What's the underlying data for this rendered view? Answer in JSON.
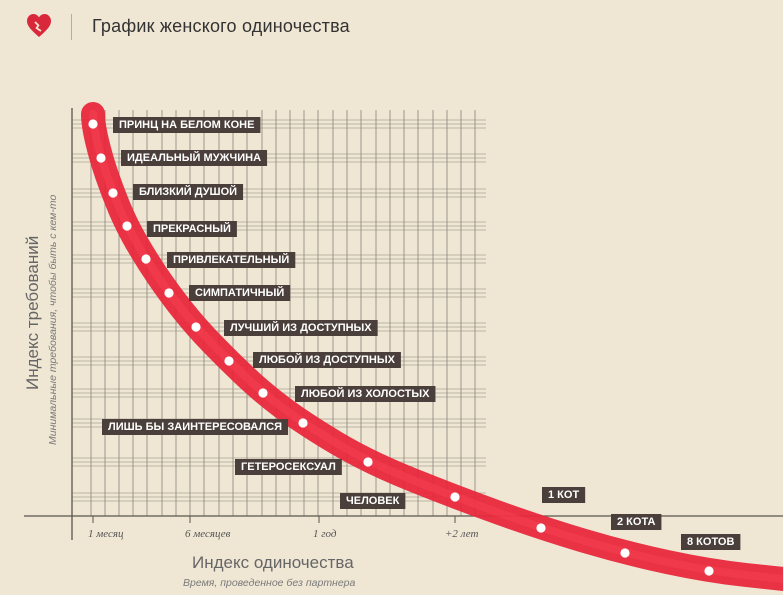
{
  "header": {
    "title": "График женского одиночества",
    "logo_icon": "heart-broken-icon"
  },
  "colors": {
    "background": "#efe6d4",
    "curve": "#e8283c",
    "label_bg": "#4a3f3a",
    "grid": "#8a8378"
  },
  "chart_data": {
    "type": "line",
    "xlabel": "Индекс одиночества",
    "xlabel_sub": "Время, проведенное без партнера",
    "ylabel": "Индекс требований",
    "ylabel_sub": "Минимальные требования, чтобы быть с кем-то",
    "x_ticks": [
      "1 месяц",
      "6 месяцев",
      "1 год",
      "+2 лет"
    ],
    "grid": true,
    "points": [
      {
        "x": 1,
        "y": 13,
        "label": "ПРИНЦ НА БЕЛОМ КОНЕ"
      },
      {
        "x": 2,
        "y": 12,
        "label": "ИДЕАЛЬНЫЙ МУЖЧИНА"
      },
      {
        "x": 3,
        "y": 11,
        "label": "БЛИЗКИЙ ДУШОЙ"
      },
      {
        "x": 4,
        "y": 10,
        "label": "ПРЕКРАСНЫЙ"
      },
      {
        "x": 5,
        "y": 9,
        "label": "ПРИВЛЕКАТЕЛЬНЫЙ"
      },
      {
        "x": 6,
        "y": 8,
        "label": "СИМПАТИЧНЫЙ"
      },
      {
        "x": 7,
        "y": 7,
        "label": "ЛУЧШИЙ ИЗ ДОСТУПНЫХ"
      },
      {
        "x": 8,
        "y": 6,
        "label": "ЛЮБОЙ ИЗ ДОСТУПНЫХ"
      },
      {
        "x": 9,
        "y": 5,
        "label": "ЛЮБОЙ ИЗ ХОЛОСТЫХ"
      },
      {
        "x": 10,
        "y": 4,
        "label": "ЛИШЬ БЫ ЗАИНТЕРЕСОВАЛСЯ"
      },
      {
        "x": 11,
        "y": 3,
        "label": "ГЕТЕРОСЕКСУАЛ"
      },
      {
        "x": 12,
        "y": 2,
        "label": "ЧЕЛОВЕК"
      },
      {
        "x": 13,
        "y": 1,
        "label": "1 КОТ"
      },
      {
        "x": 14,
        "y": 0,
        "label": "2 КОТА"
      },
      {
        "x": 15,
        "y": -1,
        "label": "8 КОТОВ"
      }
    ]
  }
}
